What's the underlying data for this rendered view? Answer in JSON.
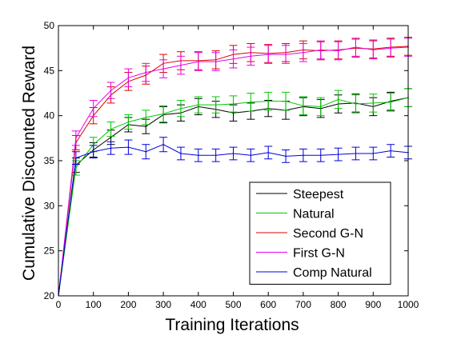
{
  "chart_data": {
    "type": "line",
    "title": "",
    "xlabel": "Training Iterations",
    "ylabel": "Cumulative Discounted Reward",
    "xlim": [
      0,
      1000
    ],
    "ylim": [
      20,
      50
    ],
    "x_ticks": [
      "0",
      "100",
      "200",
      "300",
      "400",
      "500",
      "600",
      "700",
      "800",
      "900",
      "1000"
    ],
    "y_ticks": [
      "20",
      "25",
      "30",
      "35",
      "40",
      "45",
      "50"
    ],
    "grid": false,
    "legend_position": "bottom-right",
    "x": [
      0,
      50,
      100,
      150,
      200,
      250,
      300,
      350,
      400,
      450,
      500,
      550,
      600,
      650,
      700,
      750,
      800,
      850,
      900,
      950,
      1000
    ],
    "series": [
      {
        "name": "Steepest",
        "color": "#000000",
        "values": [
          20,
          34.5,
          36.2,
          37.6,
          39.0,
          38.8,
          40.1,
          40.3,
          41.0,
          40.7,
          40.3,
          40.5,
          40.8,
          40.6,
          41.0,
          40.8,
          41.3,
          41.4,
          41.0,
          41.6,
          42.0
        ],
        "errors": [
          0,
          0.8,
          0.8,
          0.8,
          0.8,
          0.8,
          0.9,
          0.9,
          0.9,
          0.9,
          0.9,
          0.9,
          0.9,
          1.0,
          1.0,
          1.0,
          1.0,
          1.0,
          1.0,
          1.0,
          1.0
        ]
      },
      {
        "name": "Natural",
        "color": "#00c800",
        "values": [
          20,
          34.2,
          36.8,
          38.5,
          39.3,
          39.8,
          40.2,
          40.8,
          41.2,
          41.2,
          41.3,
          41.5,
          41.6,
          41.6,
          41.1,
          41.0,
          41.8,
          41.3,
          41.4,
          41.5,
          42.0
        ],
        "errors": [
          0,
          0.8,
          0.8,
          0.8,
          0.8,
          0.8,
          0.9,
          0.9,
          0.9,
          0.9,
          0.9,
          1.0,
          1.0,
          1.0,
          1.0,
          1.0,
          1.0,
          1.0,
          1.0,
          1.0,
          1.0
        ]
      },
      {
        "name": "Second G-N",
        "color": "#dd0000",
        "values": [
          20,
          37.0,
          40.0,
          42.3,
          43.8,
          44.5,
          45.8,
          46.1,
          46.1,
          46.2,
          46.8,
          47.0,
          46.9,
          47.0,
          47.3,
          47.2,
          47.3,
          47.5,
          47.4,
          47.6,
          47.7
        ],
        "errors": [
          0,
          0.8,
          0.9,
          0.9,
          1.0,
          1.0,
          1.0,
          1.0,
          1.0,
          1.0,
          1.0,
          1.0,
          1.0,
          1.0,
          1.0,
          1.0,
          1.0,
          1.0,
          1.0,
          1.0,
          1.0
        ]
      },
      {
        "name": "First G-N",
        "color": "#e600e6",
        "values": [
          20,
          37.5,
          40.8,
          42.8,
          44.2,
          44.8,
          45.2,
          45.6,
          46.0,
          46.0,
          46.3,
          46.6,
          46.8,
          46.8,
          47.0,
          47.3,
          47.2,
          47.6,
          47.3,
          47.5,
          47.6
        ],
        "errors": [
          0,
          0.8,
          0.9,
          0.9,
          1.0,
          1.0,
          1.0,
          1.0,
          1.0,
          1.0,
          1.0,
          1.0,
          1.0,
          1.0,
          1.0,
          1.0,
          1.0,
          1.0,
          1.0,
          1.0,
          1.0
        ]
      },
      {
        "name": "Comp Natural",
        "color": "#0000dd",
        "values": [
          20,
          35.3,
          36.0,
          36.4,
          36.5,
          36.0,
          36.8,
          35.8,
          35.6,
          35.6,
          35.8,
          35.6,
          35.9,
          35.5,
          35.6,
          35.6,
          35.7,
          35.8,
          35.8,
          36.1,
          35.9
        ],
        "errors": [
          0,
          0.7,
          0.7,
          0.7,
          0.8,
          0.8,
          0.8,
          0.7,
          0.7,
          0.7,
          0.7,
          0.7,
          0.7,
          0.7,
          0.7,
          0.7,
          0.7,
          0.7,
          0.7,
          0.7,
          0.7
        ]
      }
    ]
  }
}
